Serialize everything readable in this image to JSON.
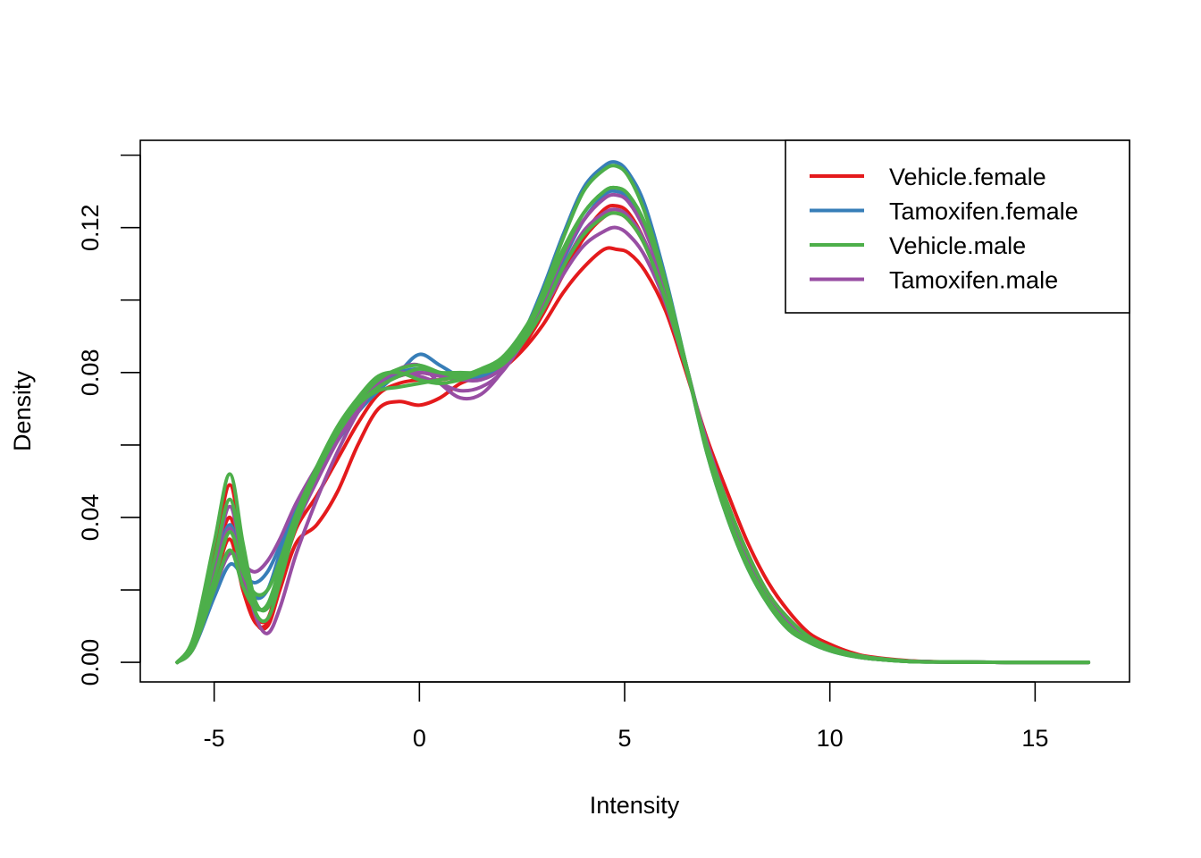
{
  "chart_data": {
    "type": "line",
    "title": "",
    "xlabel": "Intensity",
    "ylabel": "Density",
    "xlim": [
      -6.8,
      17.3
    ],
    "ylim": [
      -0.0054,
      0.1441
    ],
    "x_ticks": [
      -5,
      0,
      5,
      10,
      15
    ],
    "x_tick_labels": [
      "-5",
      "0",
      "5",
      "10",
      "15"
    ],
    "y_ticks": [
      0.0,
      0.02,
      0.04,
      0.06,
      0.08,
      0.1,
      0.12,
      0.14
    ],
    "y_tick_labels": [
      "0.00",
      "",
      "0.04",
      "",
      "0.08",
      "",
      "0.12",
      ""
    ],
    "grid": false,
    "legend_position": "top-right",
    "x": [
      -5.9,
      -5.5,
      -5.0,
      -4.62,
      -4.3,
      -4.0,
      -3.7,
      -3.4,
      -3.0,
      -2.5,
      -2.0,
      -1.5,
      -1.0,
      -0.5,
      0.0,
      0.5,
      1.0,
      1.5,
      2.0,
      2.5,
      3.0,
      3.5,
      4.0,
      4.5,
      4.8,
      5.1,
      5.5,
      6.0,
      6.5,
      7.0,
      7.5,
      8.0,
      8.5,
      9.0,
      9.5,
      10.0,
      10.5,
      11.0,
      12.0,
      13.0,
      14.0,
      15.0,
      16.3
    ],
    "series": [
      {
        "name": "Vehicle.female",
        "color": "#e41a1c",
        "curves": [
          [
            0.0,
            0.006,
            0.03,
            0.049,
            0.03,
            0.012,
            0.01,
            0.02,
            0.033,
            0.038,
            0.047,
            0.06,
            0.07,
            0.072,
            0.071,
            0.073,
            0.077,
            0.079,
            0.081,
            0.086,
            0.093,
            0.102,
            0.109,
            0.114,
            0.114,
            0.113,
            0.108,
            0.097,
            0.08,
            0.062,
            0.047,
            0.033,
            0.022,
            0.014,
            0.008,
            0.005,
            0.0028,
            0.0015,
            0.0004,
            0.0001,
            3e-05,
            1e-05,
            0.0
          ],
          [
            0.0,
            0.005,
            0.026,
            0.04,
            0.024,
            0.013,
            0.012,
            0.023,
            0.037,
            0.046,
            0.056,
            0.066,
            0.074,
            0.077,
            0.078,
            0.078,
            0.079,
            0.08,
            0.082,
            0.088,
            0.096,
            0.107,
            0.117,
            0.123,
            0.124,
            0.122,
            0.115,
            0.1,
            0.081,
            0.06,
            0.044,
            0.03,
            0.019,
            0.012,
            0.007,
            0.0042,
            0.0024,
            0.0013,
            0.0003,
            0.0001,
            2e-05,
            0.0,
            0.0
          ],
          [
            0.0,
            0.005,
            0.022,
            0.034,
            0.02,
            0.011,
            0.011,
            0.023,
            0.039,
            0.051,
            0.062,
            0.07,
            0.076,
            0.079,
            0.08,
            0.079,
            0.078,
            0.079,
            0.081,
            0.087,
            0.096,
            0.108,
            0.118,
            0.125,
            0.126,
            0.124,
            0.116,
            0.101,
            0.081,
            0.06,
            0.043,
            0.029,
            0.018,
            0.011,
            0.0065,
            0.0038,
            0.0021,
            0.0011,
            0.0003,
            0.0001,
            2e-05,
            0.0,
            0.0
          ]
        ]
      },
      {
        "name": "Tamoxifen.female",
        "color": "#377eb8",
        "curves": [
          [
            0.0,
            0.004,
            0.018,
            0.027,
            0.024,
            0.022,
            0.025,
            0.032,
            0.042,
            0.052,
            0.061,
            0.069,
            0.075,
            0.08,
            0.085,
            0.082,
            0.079,
            0.08,
            0.082,
            0.09,
            0.103,
            0.118,
            0.131,
            0.137,
            0.138,
            0.135,
            0.126,
            0.106,
            0.082,
            0.058,
            0.04,
            0.026,
            0.016,
            0.009,
            0.0055,
            0.0032,
            0.0018,
            0.001,
            0.0002,
            0.0001,
            2e-05,
            0.0,
            0.0
          ],
          [
            0.0,
            0.005,
            0.025,
            0.038,
            0.025,
            0.018,
            0.02,
            0.03,
            0.043,
            0.054,
            0.064,
            0.072,
            0.077,
            0.08,
            0.081,
            0.08,
            0.079,
            0.079,
            0.082,
            0.088,
            0.098,
            0.111,
            0.122,
            0.129,
            0.13,
            0.128,
            0.12,
            0.103,
            0.082,
            0.06,
            0.042,
            0.028,
            0.017,
            0.01,
            0.006,
            0.0035,
            0.002,
            0.001,
            0.0003,
            0.0001,
            2e-05,
            0.0,
            0.0
          ]
        ]
      },
      {
        "name": "Tamoxifen.male",
        "color": "#984ea3",
        "curves": [
          [
            0.0,
            0.004,
            0.02,
            0.03,
            0.027,
            0.025,
            0.028,
            0.034,
            0.044,
            0.054,
            0.063,
            0.071,
            0.077,
            0.081,
            0.082,
            0.077,
            0.073,
            0.074,
            0.08,
            0.088,
            0.099,
            0.112,
            0.122,
            0.128,
            0.129,
            0.127,
            0.119,
            0.103,
            0.082,
            0.06,
            0.042,
            0.028,
            0.017,
            0.01,
            0.006,
            0.0035,
            0.002,
            0.001,
            0.0003,
            0.0001,
            2e-05,
            0.0,
            0.0
          ],
          [
            0.0,
            0.005,
            0.027,
            0.043,
            0.027,
            0.013,
            0.008,
            0.015,
            0.03,
            0.045,
            0.058,
            0.069,
            0.077,
            0.08,
            0.079,
            0.077,
            0.075,
            0.076,
            0.08,
            0.088,
            0.097,
            0.107,
            0.115,
            0.119,
            0.12,
            0.118,
            0.112,
            0.099,
            0.081,
            0.061,
            0.044,
            0.03,
            0.019,
            0.012,
            0.007,
            0.0042,
            0.0024,
            0.0013,
            0.0003,
            0.0001,
            2e-05,
            0.0,
            0.0
          ],
          [
            0.0,
            0.005,
            0.024,
            0.037,
            0.024,
            0.016,
            0.015,
            0.024,
            0.038,
            0.05,
            0.061,
            0.07,
            0.076,
            0.079,
            0.08,
            0.079,
            0.078,
            0.078,
            0.081,
            0.088,
            0.097,
            0.109,
            0.119,
            0.124,
            0.125,
            0.123,
            0.116,
            0.101,
            0.081,
            0.06,
            0.043,
            0.029,
            0.018,
            0.011,
            0.0065,
            0.0038,
            0.0021,
            0.0011,
            0.0003,
            0.0001,
            2e-05,
            0.0,
            0.0
          ]
        ]
      },
      {
        "name": "Vehicle.male",
        "color": "#4daf4a",
        "curves": [
          [
            0.0,
            0.007,
            0.033,
            0.052,
            0.033,
            0.017,
            0.015,
            0.025,
            0.04,
            0.053,
            0.064,
            0.072,
            0.078,
            0.081,
            0.082,
            0.08,
            0.079,
            0.08,
            0.083,
            0.09,
            0.102,
            0.117,
            0.13,
            0.136,
            0.137,
            0.134,
            0.124,
            0.105,
            0.082,
            0.058,
            0.04,
            0.026,
            0.016,
            0.009,
            0.0055,
            0.0032,
            0.0018,
            0.001,
            0.0002,
            0.0001,
            2e-05,
            0.0,
            0.0
          ],
          [
            0.0,
            0.004,
            0.02,
            0.031,
            0.021,
            0.015,
            0.016,
            0.026,
            0.041,
            0.054,
            0.065,
            0.073,
            0.079,
            0.08,
            0.078,
            0.077,
            0.078,
            0.08,
            0.083,
            0.089,
            0.1,
            0.113,
            0.124,
            0.13,
            0.131,
            0.129,
            0.121,
            0.104,
            0.082,
            0.059,
            0.041,
            0.027,
            0.017,
            0.01,
            0.006,
            0.0034,
            0.0019,
            0.001,
            0.0002,
            0.0001,
            2e-05,
            0.0,
            0.0
          ],
          [
            0.0,
            0.006,
            0.028,
            0.045,
            0.028,
            0.014,
            0.012,
            0.022,
            0.038,
            0.052,
            0.063,
            0.071,
            0.075,
            0.076,
            0.077,
            0.078,
            0.079,
            0.081,
            0.084,
            0.091,
            0.101,
            0.114,
            0.124,
            0.13,
            0.131,
            0.129,
            0.121,
            0.104,
            0.082,
            0.059,
            0.041,
            0.027,
            0.017,
            0.01,
            0.006,
            0.0034,
            0.0019,
            0.001,
            0.0002,
            0.0001,
            2e-05,
            0.0,
            0.0
          ],
          [
            0.0,
            0.005,
            0.023,
            0.036,
            0.025,
            0.019,
            0.02,
            0.028,
            0.041,
            0.053,
            0.063,
            0.071,
            0.076,
            0.079,
            0.081,
            0.08,
            0.08,
            0.08,
            0.082,
            0.088,
            0.097,
            0.109,
            0.118,
            0.123,
            0.124,
            0.122,
            0.115,
            0.1,
            0.081,
            0.06,
            0.044,
            0.03,
            0.019,
            0.012,
            0.007,
            0.0042,
            0.0024,
            0.0013,
            0.0003,
            0.0001,
            2e-05,
            0.0,
            0.0
          ]
        ]
      }
    ]
  },
  "legend": {
    "items": [
      {
        "label": "Vehicle.female",
        "color": "#e41a1c"
      },
      {
        "label": "Tamoxifen.female",
        "color": "#377eb8"
      },
      {
        "label": "Vehicle.male",
        "color": "#4daf4a"
      },
      {
        "label": "Tamoxifen.male",
        "color": "#984ea3"
      }
    ]
  }
}
